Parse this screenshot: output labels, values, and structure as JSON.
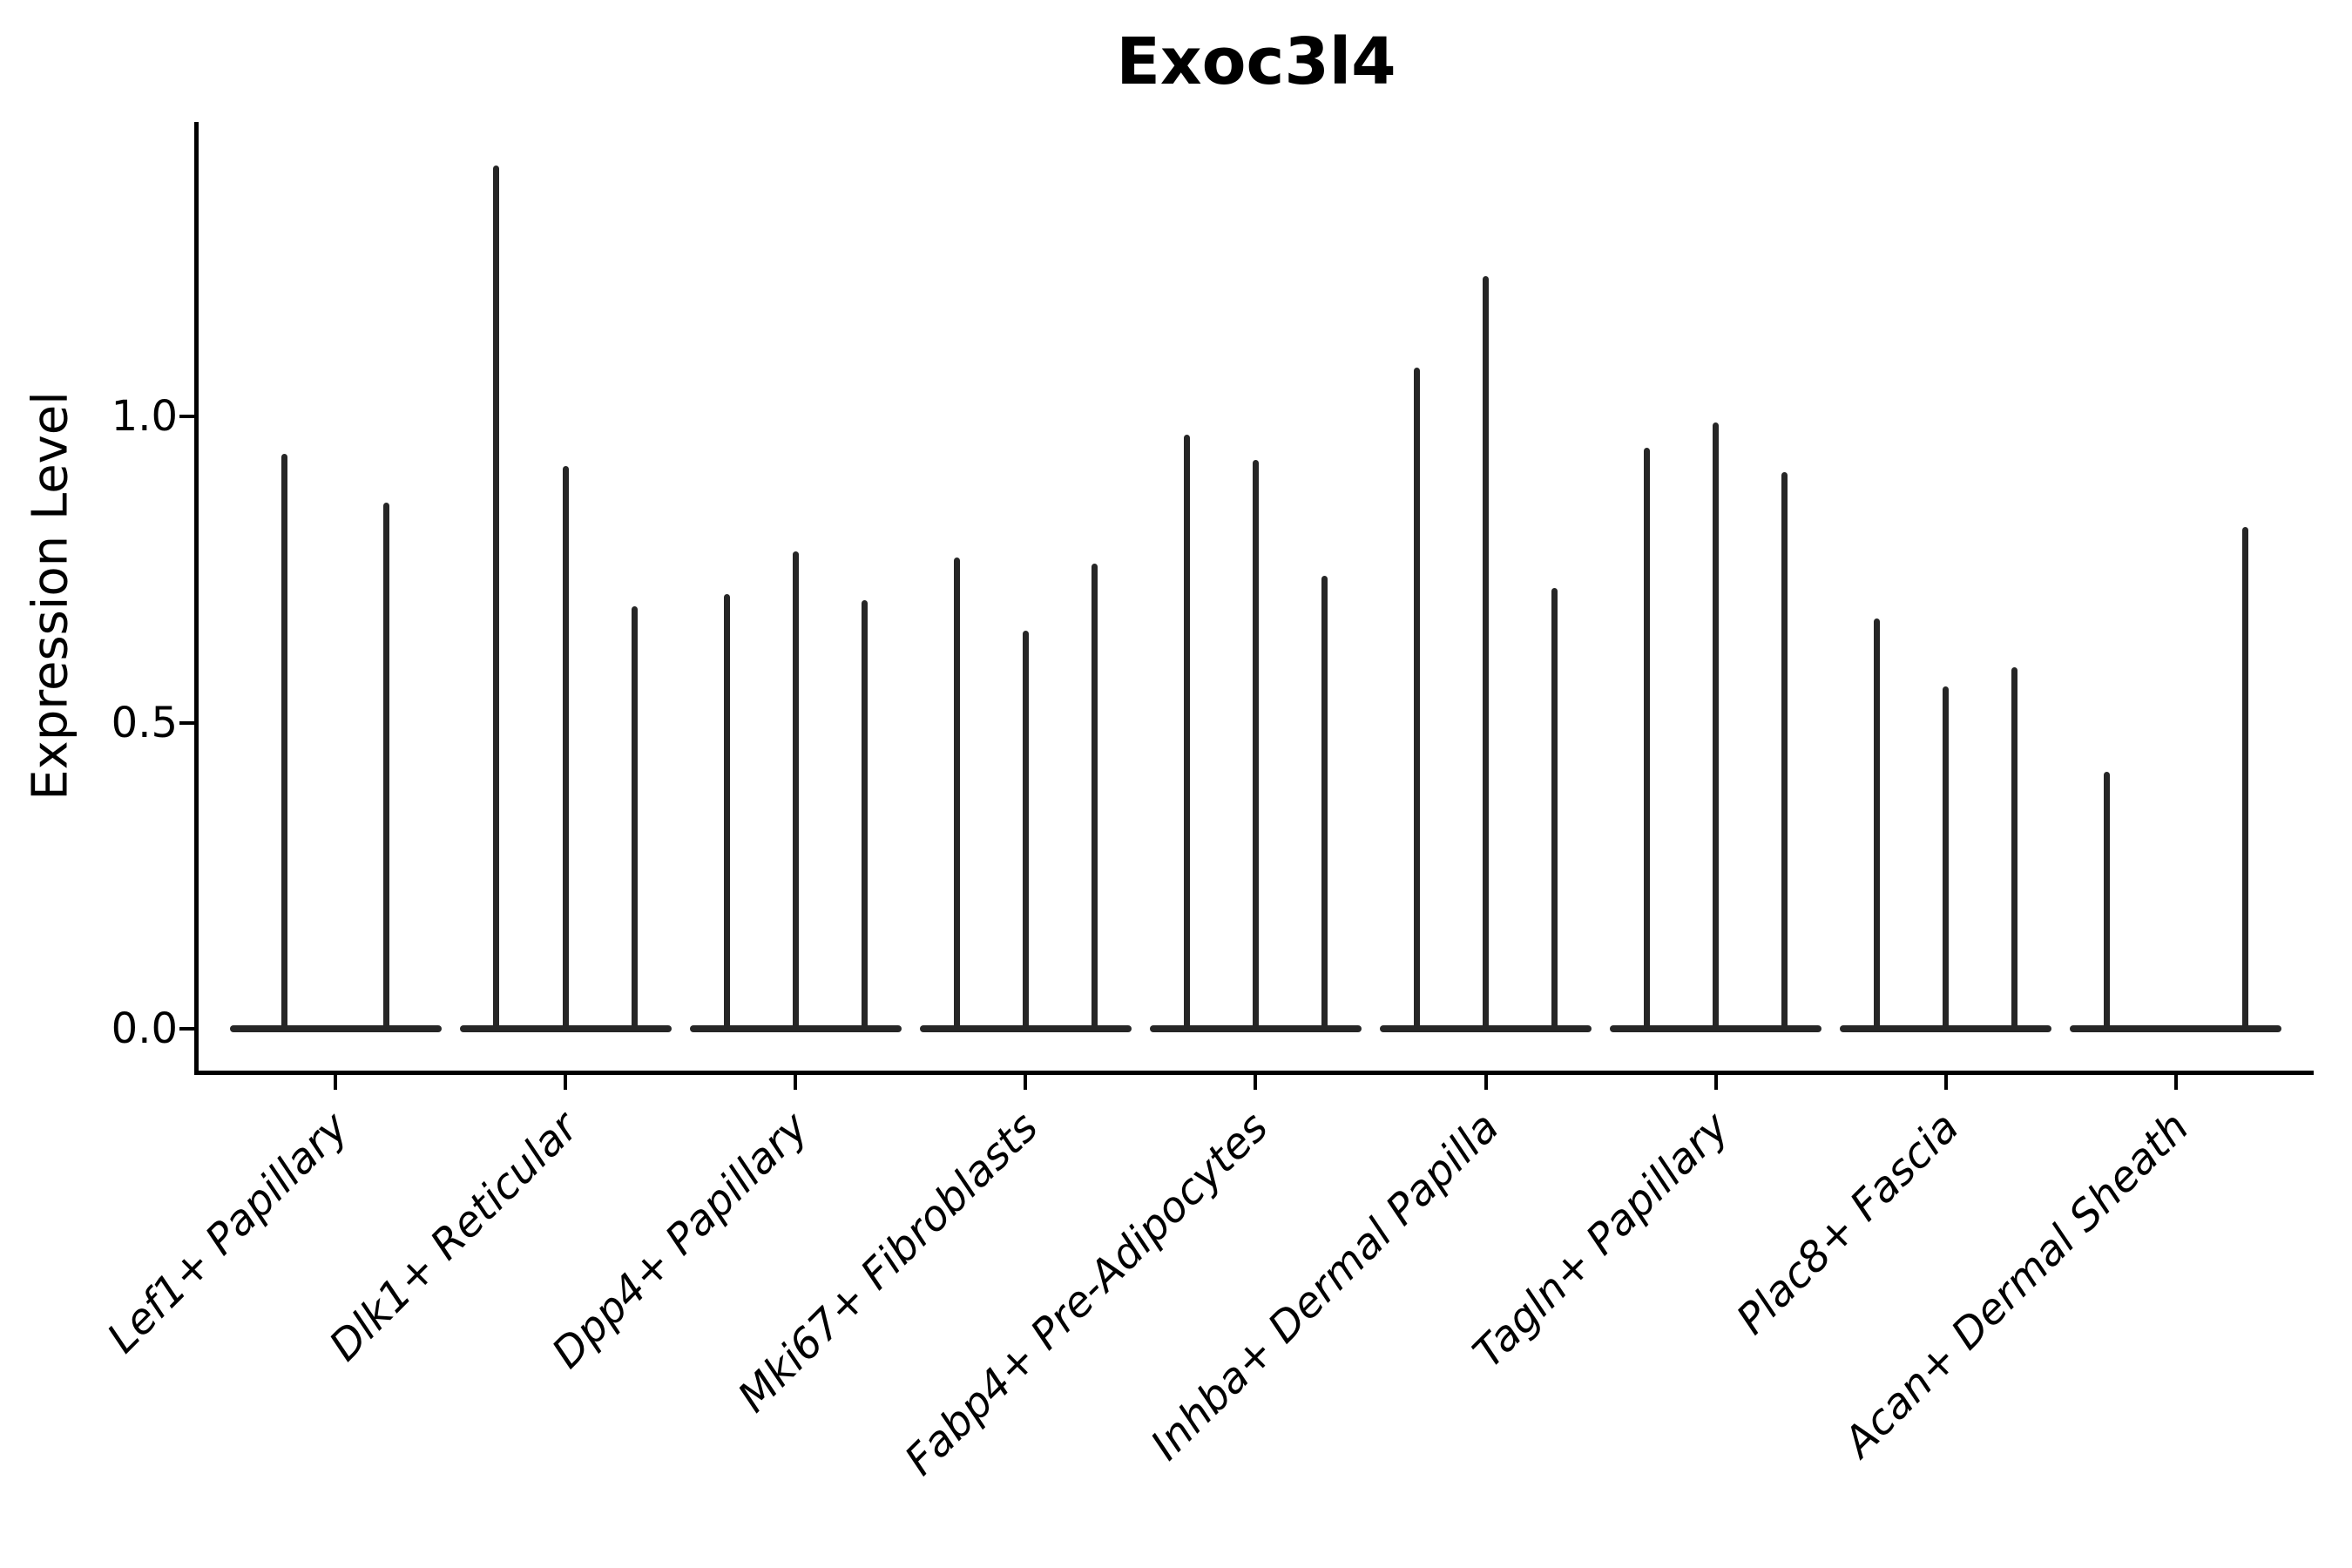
{
  "chart_data": {
    "type": "violin",
    "title": "Exoc3l4",
    "xlabel": "",
    "ylabel": "Expression Level",
    "ytick_labels": [
      "0.0",
      "0.5",
      "1.0"
    ],
    "ytick_values": [
      0.0,
      0.5,
      1.0
    ],
    "ylim": [
      -0.02,
      1.48
    ],
    "grid": false,
    "legend": null,
    "categories": [
      "Lef1+ Papillary",
      "Dlk1+ Reticular",
      "Dpp4+ Papillary",
      "Mki67+ Fibroblasts",
      "Fabp4+ Pre-Adipocytes",
      "Inhba+ Dermal Papilla",
      "Tagln+ Papillary",
      "Plac8+ Fascia",
      "Acan+ Dermal Sheath"
    ],
    "violins": [
      {
        "category": "Lef1+ Papillary",
        "base_span": [
          -0.46,
          0.46
        ],
        "spikes": [
          {
            "pos": -0.22,
            "max": 0.94
          },
          {
            "pos": 0.22,
            "max": 0.86
          }
        ]
      },
      {
        "category": "Dlk1+ Reticular",
        "base_span": [
          -0.46,
          0.46
        ],
        "spikes": [
          {
            "pos": -0.3,
            "max": 1.41
          },
          {
            "pos": 0.0,
            "max": 0.92
          },
          {
            "pos": 0.3,
            "max": 0.69
          }
        ]
      },
      {
        "category": "Dpp4+ Papillary",
        "base_span": [
          -0.46,
          0.46
        ],
        "spikes": [
          {
            "pos": -0.3,
            "max": 0.71
          },
          {
            "pos": 0.0,
            "max": 0.78
          },
          {
            "pos": 0.3,
            "max": 0.7
          }
        ]
      },
      {
        "category": "Mki67+ Fibroblasts",
        "base_span": [
          -0.46,
          0.46
        ],
        "spikes": [
          {
            "pos": -0.3,
            "max": 0.77
          },
          {
            "pos": 0.0,
            "max": 0.65
          },
          {
            "pos": 0.3,
            "max": 0.76
          }
        ]
      },
      {
        "category": "Fabp4+ Pre-Adipocytes",
        "base_span": [
          -0.46,
          0.46
        ],
        "spikes": [
          {
            "pos": -0.3,
            "max": 0.97
          },
          {
            "pos": 0.0,
            "max": 0.93
          },
          {
            "pos": 0.3,
            "max": 0.74
          }
        ]
      },
      {
        "category": "Inhba+ Dermal Papilla",
        "base_span": [
          -0.46,
          0.46
        ],
        "spikes": [
          {
            "pos": -0.3,
            "max": 1.08
          },
          {
            "pos": 0.0,
            "max": 1.23
          },
          {
            "pos": 0.3,
            "max": 0.72
          }
        ]
      },
      {
        "category": "Tagln+ Papillary",
        "base_span": [
          -0.46,
          0.46
        ],
        "spikes": [
          {
            "pos": -0.3,
            "max": 0.95
          },
          {
            "pos": 0.0,
            "max": 0.99
          },
          {
            "pos": 0.3,
            "max": 0.91
          }
        ]
      },
      {
        "category": "Plac8+ Fascia",
        "base_span": [
          -0.46,
          0.46
        ],
        "spikes": [
          {
            "pos": -0.3,
            "max": 0.67
          },
          {
            "pos": 0.0,
            "max": 0.56
          },
          {
            "pos": 0.3,
            "max": 0.59
          }
        ]
      },
      {
        "category": "Acan+ Dermal Sheath",
        "base_span": [
          -0.46,
          0.46
        ],
        "spikes": [
          {
            "pos": -0.3,
            "max": 0.42
          },
          {
            "pos": 0.3,
            "max": 0.82
          }
        ]
      }
    ],
    "colors": {
      "violin": "#262626",
      "axis": "#000000",
      "text": "#000000",
      "background": "#ffffff"
    }
  }
}
